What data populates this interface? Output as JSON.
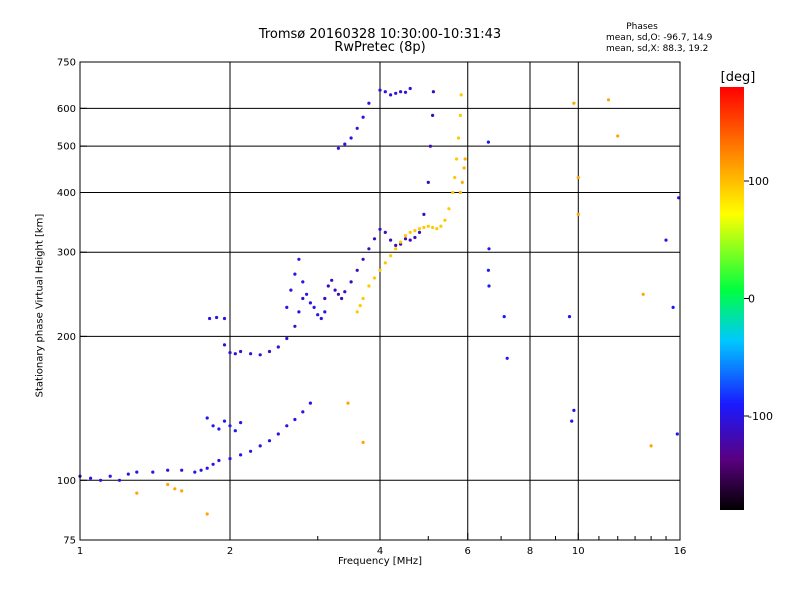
{
  "title": {
    "line1": "Tromsø 20160328 10:30:00-10:31:43",
    "line2": "RwPretec (8p)"
  },
  "phases": {
    "heading": "Phases",
    "o_line": "mean, sd,O: -96.7, 14.9",
    "x_line": "mean, sd,X: 88.3, 19.2"
  },
  "colorbar": {
    "unit": "[deg]",
    "ticks": [
      {
        "value": 100,
        "label": "100"
      },
      {
        "value": 0,
        "label": "0"
      },
      {
        "value": -100,
        "label": "-100"
      }
    ],
    "range": [
      -180,
      180
    ]
  },
  "chart_data": {
    "type": "scatter",
    "xlabel": "Frequency [MHz]",
    "ylabel": "Stationary phase Virtual Height [km]",
    "x_scale": "log",
    "y_scale": "log",
    "xlim": [
      1,
      16
    ],
    "ylim": [
      75,
      750
    ],
    "grid": true,
    "x_ticks": [
      {
        "value": 1,
        "label": "1"
      },
      {
        "value": 2,
        "label": "2"
      },
      {
        "value": 4,
        "label": "4"
      },
      {
        "value": 6,
        "label": "6"
      },
      {
        "value": 8,
        "label": "8"
      },
      {
        "value": 10,
        "label": "10"
      },
      {
        "value": 16,
        "label": "16"
      }
    ],
    "x_gridlines": [
      2,
      4,
      6,
      8,
      10
    ],
    "x_minor_ticks": [
      3,
      5,
      7,
      9,
      11,
      12,
      13,
      14,
      15
    ],
    "y_ticks": [
      {
        "value": 75,
        "label": "75"
      },
      {
        "value": 100,
        "label": "100"
      },
      {
        "value": 200,
        "label": "200"
      },
      {
        "value": 300,
        "label": "300"
      },
      {
        "value": 400,
        "label": "400"
      },
      {
        "value": 500,
        "label": "500"
      },
      {
        "value": 600,
        "label": "600"
      },
      {
        "value": 750,
        "label": "750"
      }
    ],
    "y_gridlines": [
      100,
      200,
      300,
      400,
      500,
      600
    ],
    "traces": [
      {
        "phase": -100,
        "points": [
          [
            1.0,
            102
          ],
          [
            1.05,
            101
          ],
          [
            1.1,
            100
          ],
          [
            1.15,
            102
          ],
          [
            1.2,
            100
          ],
          [
            1.25,
            103
          ],
          [
            1.3,
            104
          ],
          [
            1.4,
            104
          ],
          [
            1.5,
            105
          ],
          [
            1.6,
            105
          ],
          [
            1.7,
            104
          ],
          [
            1.75,
            105
          ],
          [
            1.8,
            106
          ],
          [
            1.85,
            108
          ],
          [
            1.9,
            110
          ],
          [
            2.0,
            111
          ],
          [
            2.1,
            113
          ],
          [
            2.2,
            115
          ],
          [
            2.3,
            118
          ],
          [
            2.4,
            121
          ],
          [
            2.5,
            125
          ],
          [
            2.6,
            130
          ],
          [
            2.7,
            134
          ],
          [
            2.8,
            139
          ],
          [
            2.9,
            145
          ]
        ]
      },
      {
        "phase": -95,
        "points": [
          [
            1.8,
            135
          ],
          [
            1.85,
            130
          ],
          [
            1.9,
            128
          ],
          [
            1.95,
            133
          ],
          [
            2.0,
            130
          ],
          [
            2.05,
            127
          ],
          [
            2.1,
            132
          ]
        ]
      },
      {
        "phase": -100,
        "points": [
          [
            1.82,
            218
          ],
          [
            1.88,
            219
          ],
          [
            1.95,
            218
          ]
        ]
      },
      {
        "phase": -105,
        "points": [
          [
            1.95,
            192
          ],
          [
            2.0,
            185
          ],
          [
            2.05,
            184
          ],
          [
            2.1,
            186
          ],
          [
            2.2,
            184
          ],
          [
            2.3,
            183
          ],
          [
            2.4,
            186
          ],
          [
            2.5,
            190
          ],
          [
            2.6,
            198
          ],
          [
            2.7,
            210
          ],
          [
            2.75,
            225
          ],
          [
            2.8,
            240
          ]
        ]
      },
      {
        "phase": -100,
        "points": [
          [
            2.6,
            230
          ],
          [
            2.65,
            250
          ],
          [
            2.7,
            270
          ],
          [
            2.75,
            290
          ],
          [
            2.8,
            260
          ],
          [
            2.85,
            245
          ],
          [
            2.9,
            235
          ],
          [
            2.95,
            230
          ],
          [
            3.0,
            222
          ],
          [
            3.05,
            218
          ],
          [
            3.1,
            225
          ]
        ]
      },
      {
        "phase": -115,
        "points": [
          [
            3.1,
            240
          ],
          [
            3.15,
            255
          ],
          [
            3.2,
            262
          ],
          [
            3.25,
            250
          ],
          [
            3.3,
            245
          ],
          [
            3.35,
            240
          ],
          [
            3.4,
            248
          ],
          [
            3.5,
            260
          ],
          [
            3.6,
            275
          ],
          [
            3.7,
            290
          ],
          [
            3.8,
            305
          ],
          [
            3.9,
            320
          ],
          [
            4.0,
            335
          ],
          [
            4.1,
            330
          ],
          [
            4.2,
            318
          ],
          [
            4.3,
            310
          ],
          [
            4.4,
            312
          ],
          [
            4.5,
            320
          ],
          [
            4.6,
            318
          ],
          [
            4.7,
            322
          ],
          [
            4.8,
            330
          ],
          [
            4.9,
            360
          ],
          [
            5.0,
            420
          ],
          [
            5.05,
            500
          ],
          [
            5.1,
            580
          ],
          [
            5.12,
            650
          ]
        ]
      },
      {
        "phase": -100,
        "points": [
          [
            3.3,
            495
          ],
          [
            3.4,
            505
          ],
          [
            3.5,
            520
          ],
          [
            3.6,
            545
          ],
          [
            3.7,
            575
          ],
          [
            3.8,
            615
          ]
        ]
      },
      {
        "phase": -105,
        "points": [
          [
            4.0,
            655
          ],
          [
            4.1,
            650
          ],
          [
            4.2,
            640
          ],
          [
            4.3,
            645
          ],
          [
            4.4,
            650
          ],
          [
            4.5,
            648
          ],
          [
            4.6,
            660
          ]
        ]
      },
      {
        "phase": 95,
        "points": [
          [
            3.6,
            225
          ],
          [
            3.65,
            232
          ],
          [
            3.7,
            240
          ],
          [
            3.8,
            255
          ],
          [
            3.9,
            265
          ],
          [
            4.0,
            275
          ],
          [
            4.1,
            285
          ],
          [
            4.2,
            295
          ],
          [
            4.3,
            305
          ],
          [
            4.4,
            315
          ],
          [
            4.5,
            325
          ],
          [
            4.6,
            330
          ],
          [
            4.7,
            333
          ],
          [
            4.8,
            336
          ],
          [
            4.9,
            338
          ],
          [
            5.0,
            340
          ],
          [
            5.1,
            338
          ],
          [
            5.2,
            336
          ],
          [
            5.3,
            340
          ],
          [
            5.4,
            350
          ],
          [
            5.5,
            370
          ],
          [
            5.6,
            400
          ],
          [
            5.65,
            430
          ],
          [
            5.7,
            470
          ],
          [
            5.75,
            520
          ],
          [
            5.8,
            580
          ],
          [
            5.82,
            640
          ]
        ]
      },
      {
        "phase": 105,
        "points": [
          [
            5.8,
            400
          ],
          [
            5.85,
            420
          ],
          [
            5.9,
            450
          ],
          [
            5.93,
            470
          ]
        ]
      },
      {
        "phase": -95,
        "points": [
          [
            6.6,
            510
          ],
          [
            6.62,
            305
          ],
          [
            6.6,
            275
          ],
          [
            6.62,
            255
          ],
          [
            7.2,
            180
          ],
          [
            7.1,
            220
          ],
          [
            9.6,
            220
          ],
          [
            9.8,
            140
          ],
          [
            9.7,
            133
          ]
        ]
      },
      {
        "phase": 110,
        "points": [
          [
            1.5,
            98
          ],
          [
            1.55,
            96
          ],
          [
            1.6,
            95
          ],
          [
            1.3,
            94
          ],
          [
            1.8,
            85
          ],
          [
            3.45,
            145
          ],
          [
            3.7,
            120
          ],
          [
            9.8,
            615
          ],
          [
            10.0,
            430
          ],
          [
            10.0,
            360
          ],
          [
            11.5,
            625
          ],
          [
            12.0,
            525
          ],
          [
            13.5,
            245
          ],
          [
            14.0,
            118
          ]
        ]
      },
      {
        "phase": -95,
        "points": [
          [
            15.0,
            318
          ],
          [
            15.5,
            230
          ],
          [
            15.8,
            125
          ],
          [
            15.9,
            390
          ]
        ]
      }
    ]
  }
}
